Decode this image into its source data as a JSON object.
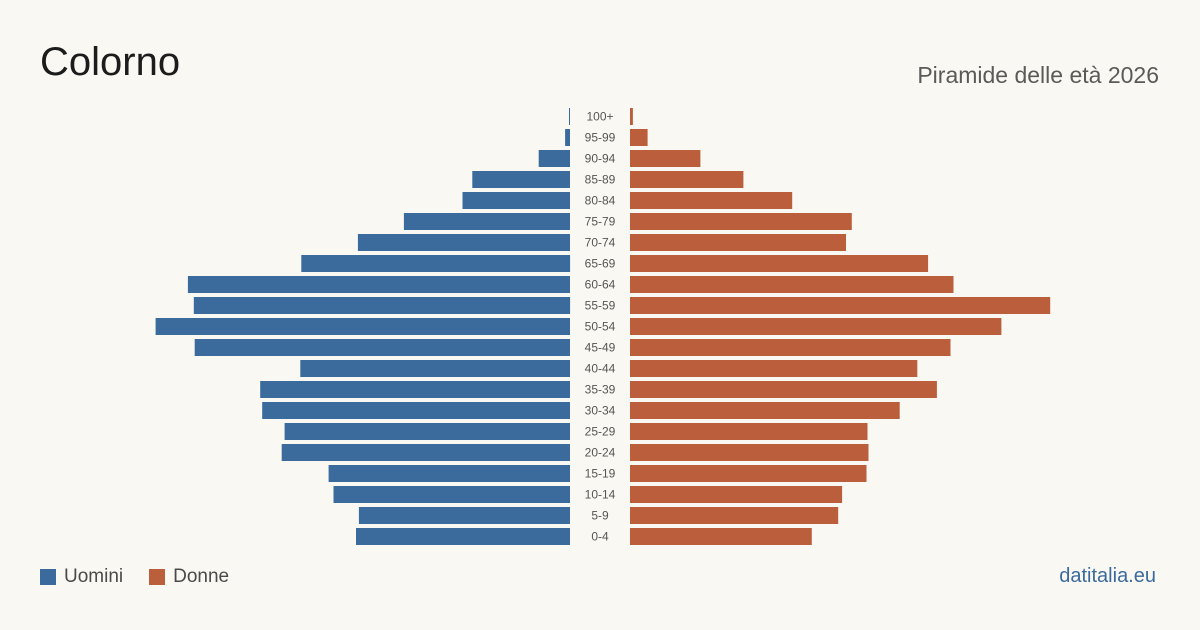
{
  "header": {
    "title": "Colorno",
    "subtitle": "Piramide delle età 2026"
  },
  "legend": {
    "men_label": "Uomini",
    "women_label": "Donne"
  },
  "source": {
    "label": "datitalia.eu"
  },
  "colors": {
    "men": "#3b6b9c",
    "women": "#bb5e3c",
    "label_text": "#555555",
    "source_text": "#3b6b9c"
  },
  "chart_data": {
    "type": "bar",
    "orientation": "horizontal-pyramid",
    "categories": [
      "100+",
      "95-99",
      "90-94",
      "85-89",
      "80-84",
      "75-79",
      "70-74",
      "65-69",
      "60-64",
      "55-59",
      "50-54",
      "45-49",
      "40-44",
      "35-39",
      "30-34",
      "25-29",
      "20-24",
      "15-19",
      "10-14",
      "5-9",
      "0-4"
    ],
    "series": [
      {
        "name": "Uomini",
        "values": [
          1,
          5,
          32,
          100,
          110,
          170,
          217,
          275,
          391,
          385,
          424,
          384,
          276,
          317,
          315,
          292,
          295,
          247,
          242,
          216,
          219
        ]
      },
      {
        "name": "Donne",
        "values": [
          3,
          18,
          72,
          116,
          166,
          227,
          221,
          305,
          331,
          430,
          380,
          328,
          294,
          314,
          276,
          243,
          244,
          242,
          217,
          213,
          186
        ]
      }
    ],
    "xlim": [
      0,
      440
    ],
    "grid": false,
    "legend_position": "bottom-left"
  }
}
